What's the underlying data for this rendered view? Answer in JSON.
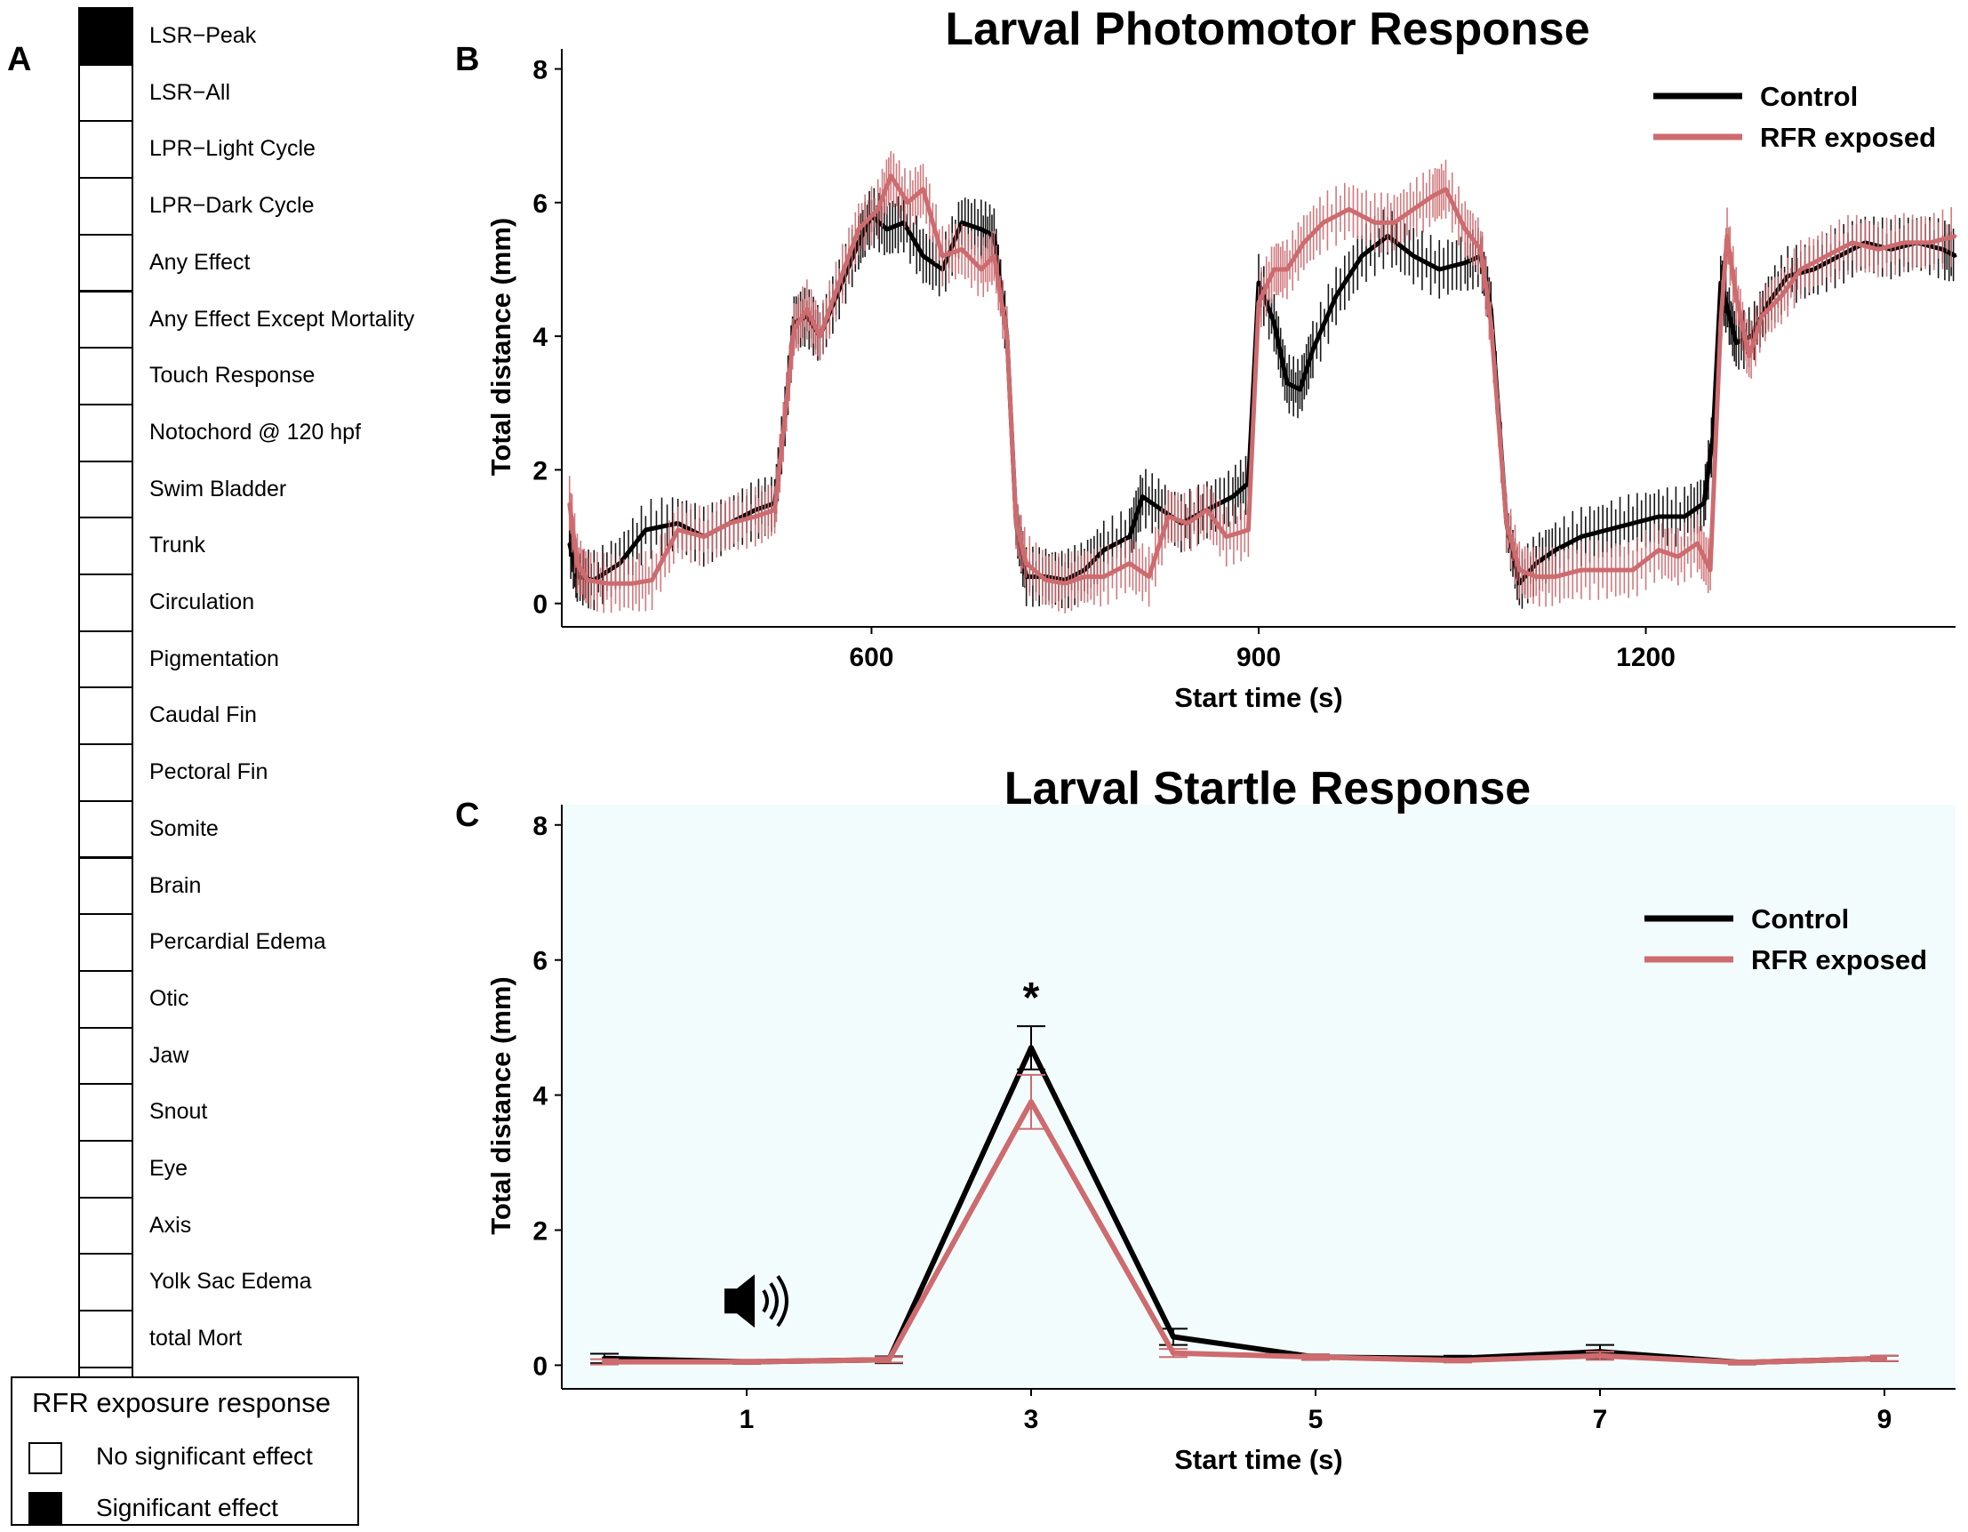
{
  "panel_letters": {
    "a": "A",
    "b": "B",
    "c": "C"
  },
  "panel_a": {
    "rows": [
      {
        "label": "LSR−Peak",
        "significant": true
      },
      {
        "label": "LSR−All",
        "significant": false
      },
      {
        "label": "LPR−Light Cycle",
        "significant": false
      },
      {
        "label": "LPR−Dark Cycle",
        "significant": false
      },
      {
        "label": "Any Effect",
        "significant": false
      },
      {
        "label": "Any Effect Except Mortality",
        "significant": false
      },
      {
        "label": "Touch Response",
        "significant": false
      },
      {
        "label": "Notochord @ 120 hpf",
        "significant": false
      },
      {
        "label": "Swim Bladder",
        "significant": false
      },
      {
        "label": "Trunk",
        "significant": false
      },
      {
        "label": "Circulation",
        "significant": false
      },
      {
        "label": "Pigmentation",
        "significant": false
      },
      {
        "label": "Caudal Fin",
        "significant": false
      },
      {
        "label": "Pectoral Fin",
        "significant": false
      },
      {
        "label": "Somite",
        "significant": false
      },
      {
        "label": "Brain",
        "significant": false
      },
      {
        "label": "Percardial Edema",
        "significant": false
      },
      {
        "label": "Otic",
        "significant": false
      },
      {
        "label": "Jaw",
        "significant": false
      },
      {
        "label": "Snout",
        "significant": false
      },
      {
        "label": "Eye",
        "significant": false
      },
      {
        "label": "Axis",
        "significant": false
      },
      {
        "label": "Yolk Sac Edema",
        "significant": false
      },
      {
        "label": "total Mort",
        "significant": false
      }
    ],
    "legend": {
      "title": "RFR exposure response",
      "no_effect": "No significant effect",
      "effect": "Significant effect"
    }
  },
  "colors": {
    "control": "#000000",
    "rfr": "#cd6b6f",
    "startle_bg": "#f3fcfc"
  },
  "chart_data": [
    {
      "type": "line",
      "title": "Larval Photomotor Response",
      "xlabel": "Start time (s)",
      "ylabel": "Total distance (mm)",
      "xlim": [
        360,
        1440
      ],
      "ylim": [
        -0.35,
        8.3
      ],
      "xticks": [
        600,
        900,
        1200
      ],
      "yticks": [
        0,
        2,
        4,
        6,
        8
      ],
      "legend_position": "top-right",
      "series": [
        {
          "name": "Control",
          "color": "#000000",
          "x": [
            366,
            372,
            385,
            405,
            425,
            450,
            470,
            490,
            510,
            525,
            533,
            540,
            550,
            560,
            575,
            590,
            600,
            612,
            625,
            640,
            655,
            670,
            685,
            695,
            705,
            712,
            720,
            735,
            750,
            765,
            780,
            800,
            810,
            825,
            840,
            860,
            880,
            892,
            900,
            912,
            922,
            932,
            942,
            960,
            980,
            1000,
            1020,
            1040,
            1060,
            1072,
            1080,
            1092,
            1102,
            1115,
            1130,
            1150,
            1170,
            1190,
            1210,
            1230,
            1245,
            1252,
            1258,
            1262,
            1270,
            1282,
            1295,
            1310,
            1330,
            1350,
            1370,
            1390,
            1410,
            1430,
            1440
          ],
          "y": [
            0.9,
            0.4,
            0.35,
            0.6,
            1.1,
            1.2,
            1.0,
            1.2,
            1.4,
            1.5,
            2.8,
            4.2,
            4.3,
            4.0,
            4.7,
            5.4,
            5.8,
            5.6,
            5.7,
            5.2,
            5.0,
            5.7,
            5.6,
            5.5,
            4.0,
            1.2,
            0.4,
            0.4,
            0.35,
            0.5,
            0.8,
            1.0,
            1.6,
            1.4,
            1.2,
            1.4,
            1.6,
            1.8,
            4.8,
            4.2,
            3.3,
            3.2,
            3.8,
            4.6,
            5.2,
            5.5,
            5.2,
            5.0,
            5.1,
            5.2,
            4.4,
            1.2,
            0.3,
            0.6,
            0.8,
            1.0,
            1.1,
            1.2,
            1.3,
            1.3,
            1.5,
            2.5,
            4.8,
            4.5,
            3.9,
            4.0,
            4.5,
            4.9,
            5.0,
            5.2,
            5.4,
            5.3,
            5.4,
            5.3,
            5.2
          ]
        },
        {
          "name": "RFR exposed",
          "color": "#cd6b6f",
          "x": [
            366,
            372,
            380,
            395,
            415,
            430,
            450,
            470,
            490,
            510,
            525,
            533,
            540,
            550,
            560,
            575,
            590,
            605,
            615,
            628,
            640,
            655,
            670,
            685,
            695,
            705,
            712,
            720,
            735,
            750,
            765,
            780,
            800,
            815,
            830,
            845,
            860,
            875,
            892,
            900,
            912,
            922,
            935,
            950,
            970,
            990,
            1005,
            1020,
            1035,
            1045,
            1060,
            1072,
            1080,
            1092,
            1102,
            1115,
            1130,
            1150,
            1170,
            1190,
            1210,
            1225,
            1240,
            1250,
            1258,
            1263,
            1270,
            1280,
            1290,
            1305,
            1320,
            1340,
            1360,
            1380,
            1400,
            1420,
            1440
          ],
          "y": [
            1.5,
            0.6,
            0.35,
            0.3,
            0.3,
            0.35,
            1.1,
            1.0,
            1.2,
            1.3,
            1.4,
            2.8,
            4.1,
            4.4,
            4.0,
            4.8,
            5.6,
            5.9,
            6.4,
            6.0,
            6.2,
            5.2,
            5.3,
            5.0,
            5.2,
            4.0,
            1.2,
            0.6,
            0.35,
            0.3,
            0.4,
            0.4,
            0.6,
            0.4,
            1.3,
            1.2,
            1.4,
            1.0,
            1.1,
            4.5,
            5.0,
            5.0,
            5.4,
            5.7,
            5.9,
            5.7,
            5.7,
            5.9,
            6.1,
            6.2,
            5.6,
            5.3,
            4.2,
            1.2,
            0.5,
            0.4,
            0.4,
            0.5,
            0.5,
            0.5,
            0.8,
            0.7,
            0.9,
            0.5,
            4.2,
            5.5,
            4.6,
            3.7,
            4.3,
            4.6,
            5.0,
            5.2,
            5.4,
            5.3,
            5.4,
            5.4,
            5.5
          ]
        }
      ]
    },
    {
      "type": "line",
      "title": "Larval Startle Response",
      "xlabel": "Start time (s)",
      "ylabel": "Total distance (mm)",
      "xlim": [
        -0.3,
        9.5
      ],
      "ylim": [
        -0.35,
        8.3
      ],
      "xticks": [
        1,
        3,
        5,
        7,
        9
      ],
      "yticks": [
        0,
        2,
        4,
        6,
        8
      ],
      "legend_position": "top-right",
      "annotation": "*",
      "annotation_x": 3,
      "annotation_y": 5.6,
      "icon": "speaker-sound-icon",
      "series": [
        {
          "name": "Control",
          "color": "#000000",
          "x": [
            0,
            1,
            2,
            3,
            4,
            5,
            6,
            7,
            8,
            9
          ],
          "y": [
            0.1,
            0.05,
            0.08,
            4.7,
            0.42,
            0.12,
            0.1,
            0.2,
            0.04,
            0.1
          ],
          "err": [
            0.07,
            0.03,
            0.05,
            0.32,
            0.12,
            0.04,
            0.04,
            0.1,
            0.03,
            0.04
          ]
        },
        {
          "name": "RFR exposed",
          "color": "#cd6b6f",
          "x": [
            0,
            1,
            2,
            3,
            4,
            5,
            6,
            7,
            8,
            9
          ],
          "y": [
            0.05,
            0.05,
            0.08,
            3.9,
            0.18,
            0.12,
            0.07,
            0.14,
            0.04,
            0.1
          ],
          "err": [
            0.04,
            0.03,
            0.04,
            0.4,
            0.06,
            0.04,
            0.03,
            0.06,
            0.03,
            0.04
          ]
        }
      ]
    }
  ]
}
